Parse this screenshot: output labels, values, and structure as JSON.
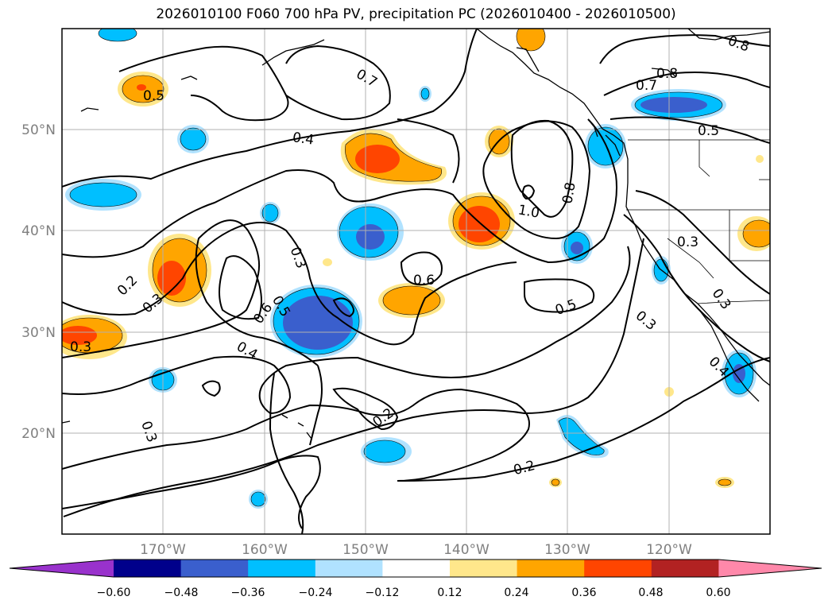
{
  "title": "2026010100 F060 700 hPa PV, precipitation PC (2026010400 - 2026010500)",
  "lat_labels": [
    "50°N",
    "40°N",
    "30°N",
    "20°N"
  ],
  "lon_labels": [
    "170°W",
    "160°W",
    "150°W",
    "140°W",
    "130°W",
    "120°W"
  ],
  "colorbar": {
    "ticks": [
      "−0.60",
      "−0.48",
      "−0.36",
      "−0.24",
      "−0.12",
      "0.12",
      "0.24",
      "0.36",
      "0.48",
      "0.60"
    ],
    "colors": [
      "#9932cc",
      "#00008b",
      "#3a5fcd",
      "#00bfff",
      "#b0e2ff",
      "#ffffff",
      "#ffe78b",
      "#ffa500",
      "#ff4500",
      "#b22222",
      "#ff88aa"
    ]
  },
  "contour_labels": [
    "0.7",
    "0.8",
    "0.8",
    "0.7",
    "0.5",
    "0.5",
    "0.4",
    "0.8",
    "1.0",
    "0.3",
    "0.6",
    "0.3",
    "0.2",
    "0.3",
    "0.6",
    "0.5",
    "0.5",
    "0.3",
    "0.3",
    "0.4",
    "0.3",
    "0.2",
    "0.2",
    "0.3",
    "0.4"
  ]
}
